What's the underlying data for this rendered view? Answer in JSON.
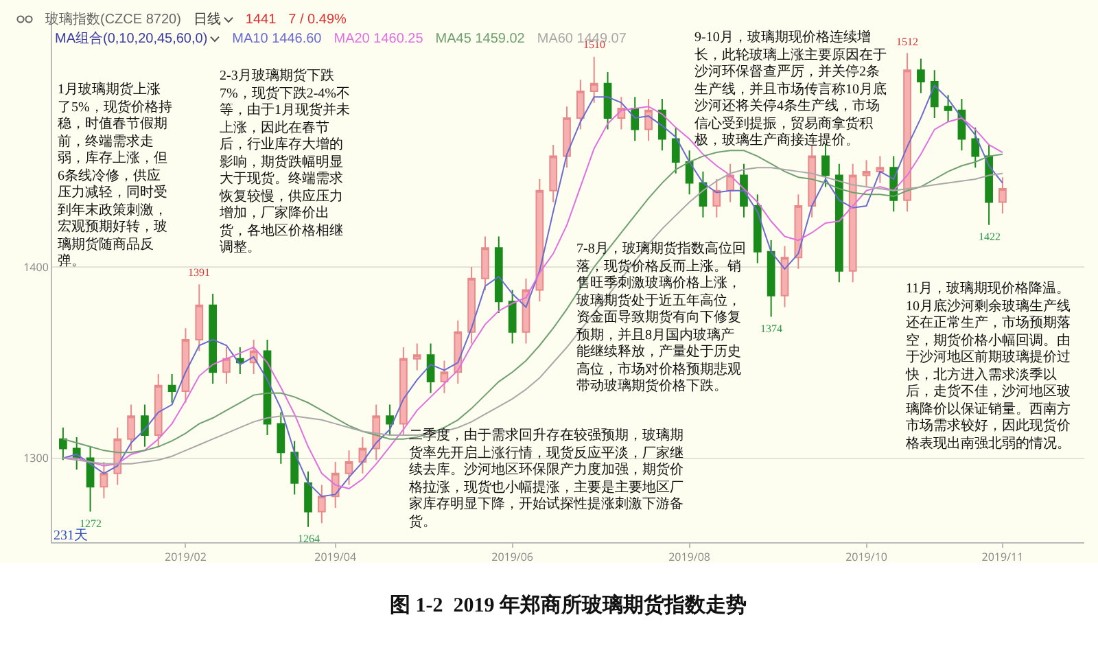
{
  "chart_data": {
    "type": "candlestick",
    "title": "图 1-2  2019 年郑商所玻璃期货指数走势",
    "categories": [
      null,
      null,
      null,
      null,
      null,
      null,
      null,
      null,
      null,
      "2019/02",
      null,
      null,
      null,
      null,
      null,
      null,
      null,
      null,
      null,
      null,
      "2019/04",
      null,
      null,
      null,
      null,
      null,
      null,
      null,
      null,
      null,
      null,
      null,
      null,
      "2019/06",
      null,
      null,
      null,
      null,
      null,
      null,
      null,
      null,
      null,
      null,
      null,
      null,
      "2019/08",
      null,
      null,
      null,
      null,
      null,
      null,
      null,
      null,
      null,
      null,
      null,
      null,
      "2019/10",
      null,
      null,
      null,
      null,
      null,
      null,
      null,
      null,
      null,
      "2019/11"
    ],
    "ohlc": [
      [
        1310,
        1316,
        1299,
        1305
      ],
      [
        1305,
        1311,
        1294,
        1300
      ],
      [
        1300,
        1306,
        1272,
        1285
      ],
      [
        1285,
        1298,
        1279,
        1292
      ],
      [
        1292,
        1316,
        1286,
        1310
      ],
      [
        1310,
        1328,
        1304,
        1322
      ],
      [
        1322,
        1328,
        1306,
        1312
      ],
      [
        1312,
        1344,
        1306,
        1338
      ],
      [
        1338,
        1344,
        1329,
        1335
      ],
      [
        1335,
        1368,
        1329,
        1362
      ],
      [
        1362,
        1391,
        1356,
        1380
      ],
      [
        1380,
        1386,
        1339,
        1345
      ],
      [
        1345,
        1358,
        1339,
        1352
      ],
      [
        1352,
        1358,
        1344,
        1350
      ],
      [
        1350,
        1362,
        1344,
        1356
      ],
      [
        1356,
        1362,
        1312,
        1318
      ],
      [
        1318,
        1324,
        1297,
        1303
      ],
      [
        1303,
        1309,
        1281,
        1287
      ],
      [
        1287,
        1293,
        1264,
        1272
      ],
      [
        1272,
        1286,
        1266,
        1280
      ],
      [
        1280,
        1298,
        1274,
        1292
      ],
      [
        1292,
        1304,
        1286,
        1298
      ],
      [
        1298,
        1311,
        1292,
        1305
      ],
      [
        1305,
        1328,
        1299,
        1322
      ],
      [
        1322,
        1328,
        1312,
        1318
      ],
      [
        1318,
        1358,
        1312,
        1352
      ],
      [
        1352,
        1360,
        1346,
        1354
      ],
      [
        1354,
        1360,
        1334,
        1340
      ],
      [
        1340,
        1351,
        1334,
        1345
      ],
      [
        1345,
        1372,
        1339,
        1366
      ],
      [
        1366,
        1400,
        1360,
        1394
      ],
      [
        1394,
        1416,
        1388,
        1410
      ],
      [
        1410,
        1416,
        1376,
        1382
      ],
      [
        1382,
        1388,
        1360,
        1366
      ],
      [
        1366,
        1394,
        1360,
        1388
      ],
      [
        1388,
        1446,
        1382,
        1440
      ],
      [
        1440,
        1464,
        1434,
        1458
      ],
      [
        1458,
        1484,
        1452,
        1478
      ],
      [
        1478,
        1498,
        1472,
        1492
      ],
      [
        1492,
        1510,
        1486,
        1496
      ],
      [
        1496,
        1502,
        1472,
        1478
      ],
      [
        1478,
        1489,
        1472,
        1483
      ],
      [
        1483,
        1489,
        1466,
        1472
      ],
      [
        1472,
        1488,
        1466,
        1482
      ],
      [
        1482,
        1488,
        1461,
        1467
      ],
      [
        1467,
        1473,
        1449,
        1455
      ],
      [
        1455,
        1461,
        1438,
        1444
      ],
      [
        1444,
        1450,
        1426,
        1432
      ],
      [
        1432,
        1446,
        1426,
        1440
      ],
      [
        1440,
        1454,
        1434,
        1448
      ],
      [
        1448,
        1454,
        1426,
        1432
      ],
      [
        1432,
        1438,
        1402,
        1408
      ],
      [
        1408,
        1414,
        1374,
        1385
      ],
      [
        1385,
        1411,
        1379,
        1405
      ],
      [
        1405,
        1438,
        1399,
        1432
      ],
      [
        1432,
        1464,
        1426,
        1458
      ],
      [
        1458,
        1464,
        1442,
        1448
      ],
      [
        1448,
        1454,
        1392,
        1398
      ],
      [
        1398,
        1454,
        1392,
        1448
      ],
      [
        1448,
        1456,
        1442,
        1450
      ],
      [
        1450,
        1458,
        1444,
        1452
      ],
      [
        1452,
        1458,
        1429,
        1435
      ],
      [
        1435,
        1512,
        1429,
        1503
      ],
      [
        1503,
        1509,
        1491,
        1497
      ],
      [
        1497,
        1503,
        1478,
        1484
      ],
      [
        1484,
        1490,
        1476,
        1482
      ],
      [
        1482,
        1488,
        1461,
        1467
      ],
      [
        1467,
        1473,
        1452,
        1458
      ],
      [
        1458,
        1464,
        1422,
        1434
      ],
      [
        1434,
        1447,
        1428,
        1441
      ]
    ],
    "series": [
      {
        "type": "line",
        "name": "MA10 1446.60",
        "color": "#6a6ad0",
        "values": [
          1300,
          1302,
          1297,
          1292,
          1296,
          1308,
          1315,
          1324,
          1328,
          1345,
          1359,
          1362,
          1359,
          1349,
          1353,
          1341,
          1326,
          1303,
          1287,
          1280,
          1281,
          1290,
          1298,
          1308,
          1315,
          1331,
          1341,
          1349,
          1346,
          1350,
          1368,
          1390,
          1395,
          1386,
          1379,
          1398,
          1429,
          1459,
          1476,
          1489,
          1489,
          1486,
          1478,
          1479,
          1474,
          1468,
          1455,
          1444,
          1439,
          1440,
          1440,
          1429,
          1408,
          1399,
          1407,
          1432,
          1446,
          1435,
          1431,
          1432,
          1450,
          1446,
          1463,
          1478,
          1495,
          1488,
          1478,
          1469,
          1453,
          1444
        ]
      },
      {
        "type": "line",
        "name": "MA20 1460.25",
        "color": "#e070e0",
        "values": [
          1300,
          1300,
          1298,
          1296,
          1297,
          1302,
          1304,
          1310,
          1318,
          1330,
          1343,
          1349,
          1352,
          1355,
          1358,
          1350,
          1337,
          1323,
          1306,
          1292,
          1286,
          1284,
          1289,
          1297,
          1306,
          1315,
          1325,
          1332,
          1339,
          1346,
          1359,
          1370,
          1377,
          1381,
          1384,
          1397,
          1407,
          1422,
          1442,
          1462,
          1475,
          1482,
          1483,
          1484,
          1480,
          1473,
          1467,
          1459,
          1453,
          1448,
          1441,
          1434,
          1424,
          1416,
          1414,
          1418,
          1423,
          1424,
          1432,
          1440,
          1442,
          1440,
          1448,
          1459,
          1472,
          1476,
          1478,
          1472,
          1464,
          1460
        ]
      },
      {
        "type": "line",
        "name": "MA45 1459.02",
        "color": "#70a070",
        "values": [
          1310,
          1308,
          1306,
          1304,
          1303,
          1303,
          1304,
          1306,
          1309,
          1313,
          1318,
          1321,
          1325,
          1329,
          1333,
          1334,
          1334,
          1332,
          1329,
          1325,
          1321,
          1317,
          1314,
          1312,
          1310,
          1310,
          1311,
          1313,
          1316,
          1320,
          1326,
          1333,
          1340,
          1345,
          1351,
          1359,
          1368,
          1378,
          1389,
          1400,
          1409,
          1418,
          1427,
          1436,
          1444,
          1451,
          1455,
          1458,
          1460,
          1461,
          1461,
          1458,
          1454,
          1450,
          1447,
          1446,
          1444,
          1441,
          1439,
          1438,
          1438,
          1437,
          1440,
          1442,
          1446,
          1450,
          1453,
          1455,
          1458,
          1459
        ]
      },
      {
        "type": "line",
        "name": "MA60 1449.07",
        "color": "#a8a8a8",
        "values": [
          1300,
          1299,
          1298,
          1297,
          1297,
          1297,
          1298,
          1299,
          1301,
          1304,
          1307,
          1310,
          1313,
          1316,
          1319,
          1321,
          1322,
          1322,
          1321,
          1320,
          1318,
          1316,
          1314,
          1313,
          1312,
          1312,
          1312,
          1313,
          1314,
          1316,
          1319,
          1323,
          1327,
          1331,
          1336,
          1342,
          1350,
          1358,
          1367,
          1376,
          1385,
          1394,
          1403,
          1412,
          1420,
          1427,
          1434,
          1440,
          1445,
          1449,
          1451,
          1452,
          1452,
          1451,
          1450,
          1449,
          1447,
          1445,
          1443,
          1442,
          1441,
          1440,
          1441,
          1442,
          1443,
          1444,
          1445,
          1446,
          1448,
          1449
        ]
      }
    ],
    "ylim": [
      1256,
      1534
    ],
    "yticks": [
      1300,
      1400
    ],
    "grid": "y",
    "legend": "top left",
    "annotations": [
      "玻璃指数(CZCE 8720)",
      "日线",
      "1441",
      "7 / 0.49%",
      "MA组合(0,10,20,45,60,0)",
      "231天",
      "1月玻璃期货上涨了5%，现货价格持稳，时值春节假期前，终端需求走弱，库存上涨，但6条线冷修，供应压力减轻，同时受到年末政策刺激，宏观预期好转，玻璃期货随商品反弹。",
      "2-3月玻璃期货下跌7%，现货下跌2-4%不等，由于1月现货并未上涨，因此在春节后，行业库存大增的影响，期货跌幅明显大于现货。终端需求恢复较慢，供应压力增加，厂家降价出货，各地区价格相继调整。",
      "二季度，由于需求回升存在较强预期，玻璃期货率先开启上涨行情，现货反应平淡，厂家继续去库。沙河地区环保限产力度加强，期货价格拉涨，现货也小幅提涨，主要是主要地区厂家库存明显下降，开始试探性提涨刺激下游备货。",
      "7-8月，玻璃期货指数高位回落，现货价格反而上涨。销售旺季刺激玻璃价格上涨，玻璃期货处于近五年高位，资金面导致期货有向下修复预期，并且8月国内玻璃产能继续释放，产量处于历史高位，市场对价格预期悲观带动玻璃期货价格下跌。",
      "9-10月，玻璃期现价格连续增长，此轮玻璃上涨主要原因在于沙河环保督查严厉，并关停2条生产线，并且市场传言称10月底沙河还将关停4条生产线，市场信心受到提振，贸易商拿货积极，玻璃生产商接连提价。",
      "11月，玻璃期现价格降温。10月底沙河剩余玻璃生产线还在正常生产，市场预期落空，期货价格小幅回调。由于沙河地区前期玻璃提价过快，北方进入需求淡季以后，走货不佳，沙河地区玻璃降价以保证销量。西南方市场需求较好，因此现货价格表现出南强北弱的情况。",
      {
        "text": "1272",
        "y": 1272
      },
      {
        "text": "1391",
        "y": 1391
      },
      {
        "text": "1264",
        "y": 1264
      },
      {
        "text": "1510",
        "y": 1510
      },
      {
        "text": "1374",
        "y": 1374
      },
      {
        "text": "1512",
        "y": 1512
      },
      {
        "text": "1422",
        "y": 1422
      }
    ]
  }
}
